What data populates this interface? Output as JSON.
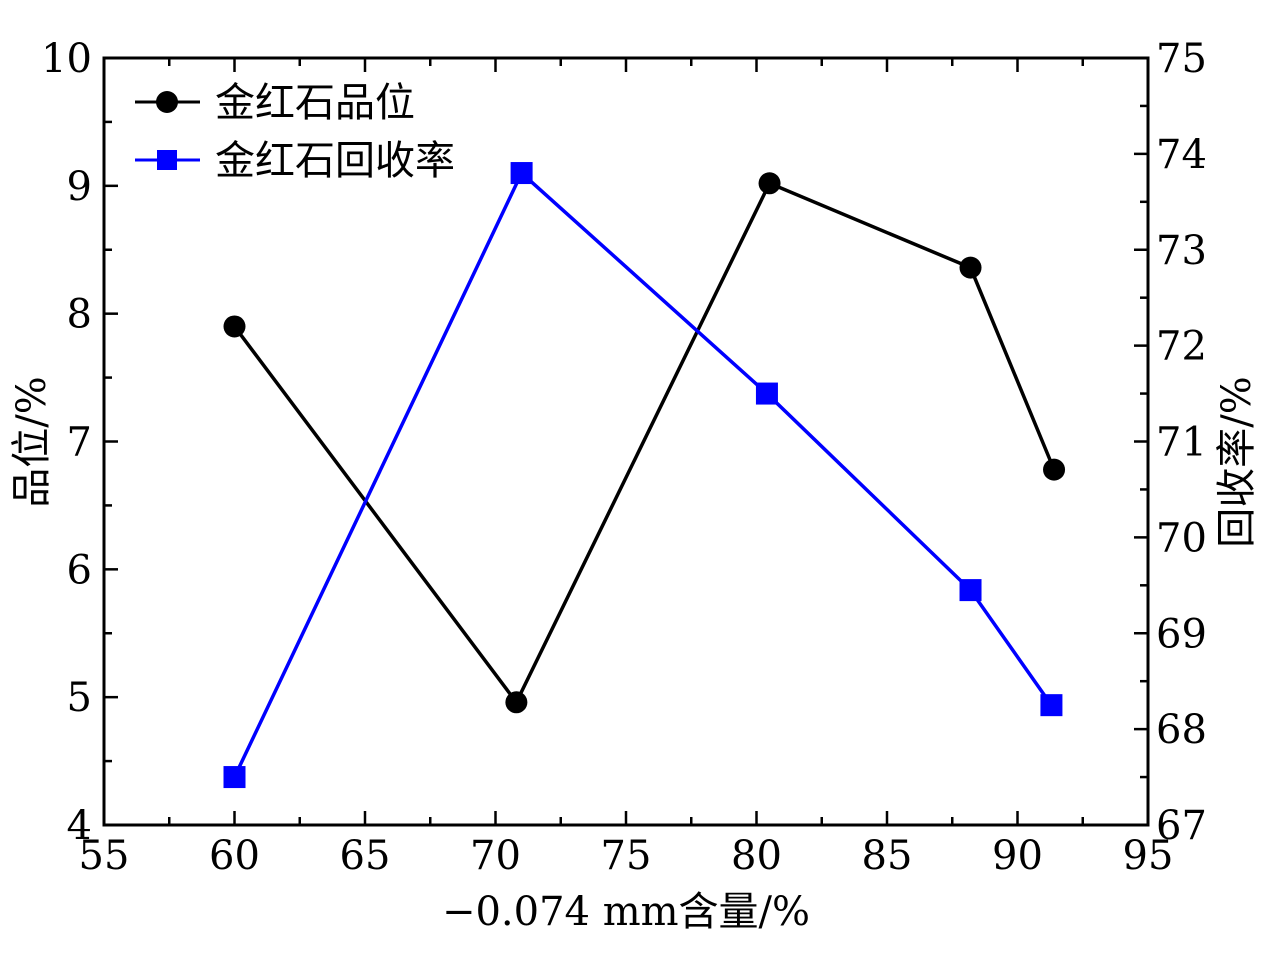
{
  "chart_data": {
    "type": "line",
    "xlabel": "−0.074 mm含量/%",
    "ylabel_left": "品位/%",
    "ylabel_right": "回收率/%",
    "xlim": [
      55,
      95
    ],
    "ylim_left": [
      4,
      10
    ],
    "ylim_right": [
      67,
      75
    ],
    "x_ticks": [
      55,
      60,
      65,
      70,
      75,
      80,
      85,
      90,
      95
    ],
    "y_left_ticks": [
      4,
      5,
      6,
      7,
      8,
      9,
      10
    ],
    "y_right_ticks": [
      67,
      68,
      69,
      70,
      71,
      72,
      73,
      74,
      75
    ],
    "legend_position": "top-left",
    "grid": false,
    "series": [
      {
        "name": "金红石品位",
        "axis": "left",
        "color": "#000000",
        "marker": "circle",
        "x": [
          60.0,
          70.8,
          80.5,
          88.2,
          91.4
        ],
        "y": [
          7.9,
          4.96,
          9.02,
          8.36,
          6.78
        ]
      },
      {
        "name": "金红石回收率",
        "axis": "right",
        "color": "#0000ff",
        "marker": "square",
        "x": [
          60.0,
          71.0,
          80.4,
          88.2,
          91.3
        ],
        "y": [
          67.5,
          73.8,
          71.5,
          69.45,
          68.25
        ]
      }
    ]
  }
}
